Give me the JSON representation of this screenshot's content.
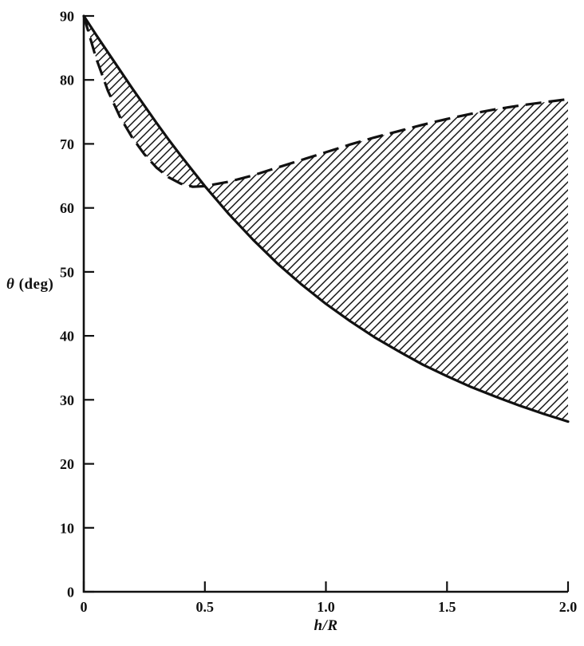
{
  "figure": {
    "background": "#ffffff",
    "ink_color": "#111111"
  },
  "chart_data": {
    "type": "line",
    "title": "",
    "xlabel": "h/R",
    "ylabel": "θ (deg)",
    "ylabel_symbol": "θ",
    "ylabel_unit": " (deg)",
    "xlim": [
      0,
      2.0
    ],
    "ylim": [
      0,
      90
    ],
    "grid": false,
    "legend_position": "none",
    "x_ticks": {
      "values": [
        0,
        0.5,
        1.0,
        1.5,
        2.0
      ],
      "labels": [
        "0",
        "0.5",
        "1.0",
        "1.5",
        "2.0"
      ]
    },
    "y_ticks": {
      "values": [
        90,
        80,
        70,
        60,
        50,
        40,
        30,
        20,
        10,
        0
      ],
      "labels": [
        "90",
        "80",
        "70",
        "60",
        "50",
        "40",
        "30",
        "20",
        "10",
        "0"
      ]
    },
    "series": [
      {
        "name": "lower-boundary-solid",
        "line_style": "solid",
        "x": [
          0,
          0.05,
          0.1,
          0.15,
          0.2,
          0.25,
          0.3,
          0.35,
          0.4,
          0.45,
          0.5,
          0.6,
          0.7,
          0.8,
          0.9,
          1.0,
          1.1,
          1.2,
          1.3,
          1.4,
          1.5,
          1.6,
          1.7,
          1.8,
          1.9,
          2.0
        ],
        "y": [
          90,
          87.1,
          84.3,
          81.5,
          78.7,
          76.0,
          73.3,
          70.7,
          68.2,
          65.8,
          63.4,
          59.0,
          55.0,
          51.3,
          48.0,
          45.0,
          42.3,
          39.8,
          37.6,
          35.5,
          33.7,
          32.0,
          30.5,
          29.1,
          27.8,
          26.6
        ]
      },
      {
        "name": "upper-boundary-dashed",
        "line_style": "dashed",
        "x": [
          0,
          0.05,
          0.1,
          0.15,
          0.2,
          0.25,
          0.3,
          0.35,
          0.4,
          0.45,
          0.5,
          0.6,
          0.7,
          0.8,
          0.9,
          1.0,
          1.1,
          1.2,
          1.3,
          1.4,
          1.5,
          1.6,
          1.7,
          1.8,
          1.9,
          2.0
        ],
        "y": [
          90,
          83.5,
          78.3,
          74.2,
          71.0,
          68.4,
          66.3,
          64.8,
          63.8,
          63.3,
          63.4,
          64.1,
          65.1,
          66.3,
          67.5,
          68.7,
          69.9,
          71.0,
          72.0,
          73.0,
          73.9,
          74.7,
          75.4,
          76.0,
          76.5,
          77.0
        ]
      }
    ],
    "shaded_region": {
      "description": "diagonal-hatched area enclosed between the solid and dashed curves (curves cross near h/R = 0.5, θ ≈ 63°)",
      "hatch": "diagonal"
    }
  }
}
